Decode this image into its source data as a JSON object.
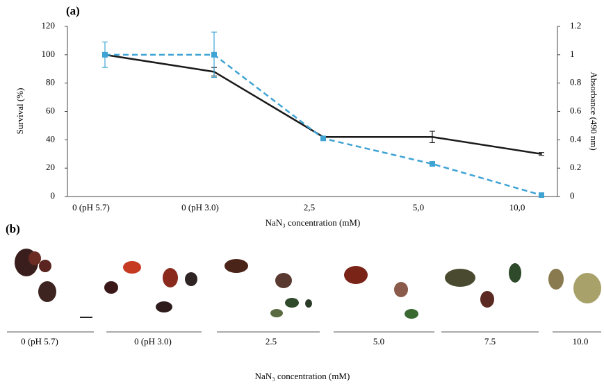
{
  "chart_data": {
    "type": "line",
    "panel_label": "(a)",
    "categories": [
      "0 (pH 5.7)",
      "0 (pH 3.0)",
      "2,5",
      "5,0",
      "10,0"
    ],
    "xlabel": "NaN₃ concentration (mM)",
    "ylabel": "Survival (%)",
    "y2label": "Absorbance (490 nm)",
    "ylim": [
      0,
      120
    ],
    "yticks": [
      0,
      20,
      40,
      60,
      80,
      100,
      120
    ],
    "y2lim": [
      0,
      1.2
    ],
    "y2ticks": [
      0,
      0.2,
      0.4,
      0.6,
      0.8,
      1,
      1.2
    ],
    "series": [
      {
        "color": "#1a1a1a",
        "dash": false,
        "marker": "none",
        "axis": "y2",
        "values": [
          1.0,
          0.88,
          0.42,
          0.42,
          0.3
        ],
        "errors": [
          null,
          0.03,
          null,
          0.04,
          0.01
        ]
      },
      {
        "color": "#3fa3d4",
        "dash": true,
        "marker": "square",
        "axis": "y",
        "values": [
          100,
          100,
          41,
          23,
          1
        ],
        "errors": [
          9,
          16,
          null,
          null,
          null
        ]
      }
    ]
  },
  "panel_b": {
    "label": "(b)",
    "groups": [
      "0 (pH 5.7)",
      "0 (pH 3.0)",
      "2.5",
      "5.0",
      "7.5",
      "10.0"
    ],
    "xlabel": "NaN₃ concentration (mM)"
  }
}
